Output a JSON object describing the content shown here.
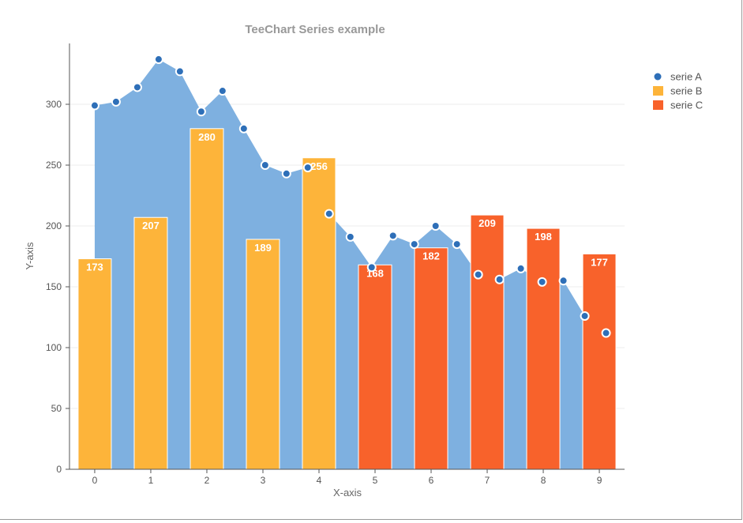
{
  "chart_data": {
    "type": "bar",
    "title": "TeeChart Series example",
    "xlabel": "X-axis",
    "ylabel": "Y-axis",
    "xlim": [
      -0.45,
      9.45
    ],
    "ylim": [
      0,
      350
    ],
    "y_ticks": [
      0,
      50,
      100,
      150,
      200,
      250,
      300
    ],
    "x_ticks": [
      0,
      1,
      2,
      3,
      4,
      5,
      6,
      7,
      8,
      9
    ],
    "grid": "horizontal",
    "legend_position": "top-right",
    "series": [
      {
        "name": "serie A",
        "type": "area",
        "color": "#7eb0e0",
        "marker_color": "#2e6fb8",
        "x": [
          0,
          0.38,
          0.76,
          1.14,
          1.52,
          1.9,
          2.28,
          2.66,
          3.04,
          3.42,
          3.8,
          4.18,
          4.56,
          4.94,
          5.32,
          5.7,
          6.08,
          6.46,
          6.84,
          7.22,
          7.6,
          7.98,
          8.36,
          8.74,
          9.12
        ],
        "values": [
          299,
          302,
          314,
          337,
          327,
          294,
          311,
          280,
          250,
          243,
          248,
          210,
          191,
          166,
          192,
          185,
          200,
          185,
          160,
          156,
          165,
          154,
          155,
          126,
          112
        ]
      },
      {
        "name": "serie B",
        "type": "bar",
        "color": "#fdb43a",
        "x": [
          0,
          1,
          2,
          3,
          4
        ],
        "values": [
          173,
          207,
          280,
          189,
          256
        ]
      },
      {
        "name": "serie C",
        "type": "bar",
        "color": "#f8622b",
        "x": [
          5,
          6,
          7,
          8,
          9
        ],
        "values": [
          168,
          182,
          209,
          198,
          177
        ]
      }
    ]
  }
}
